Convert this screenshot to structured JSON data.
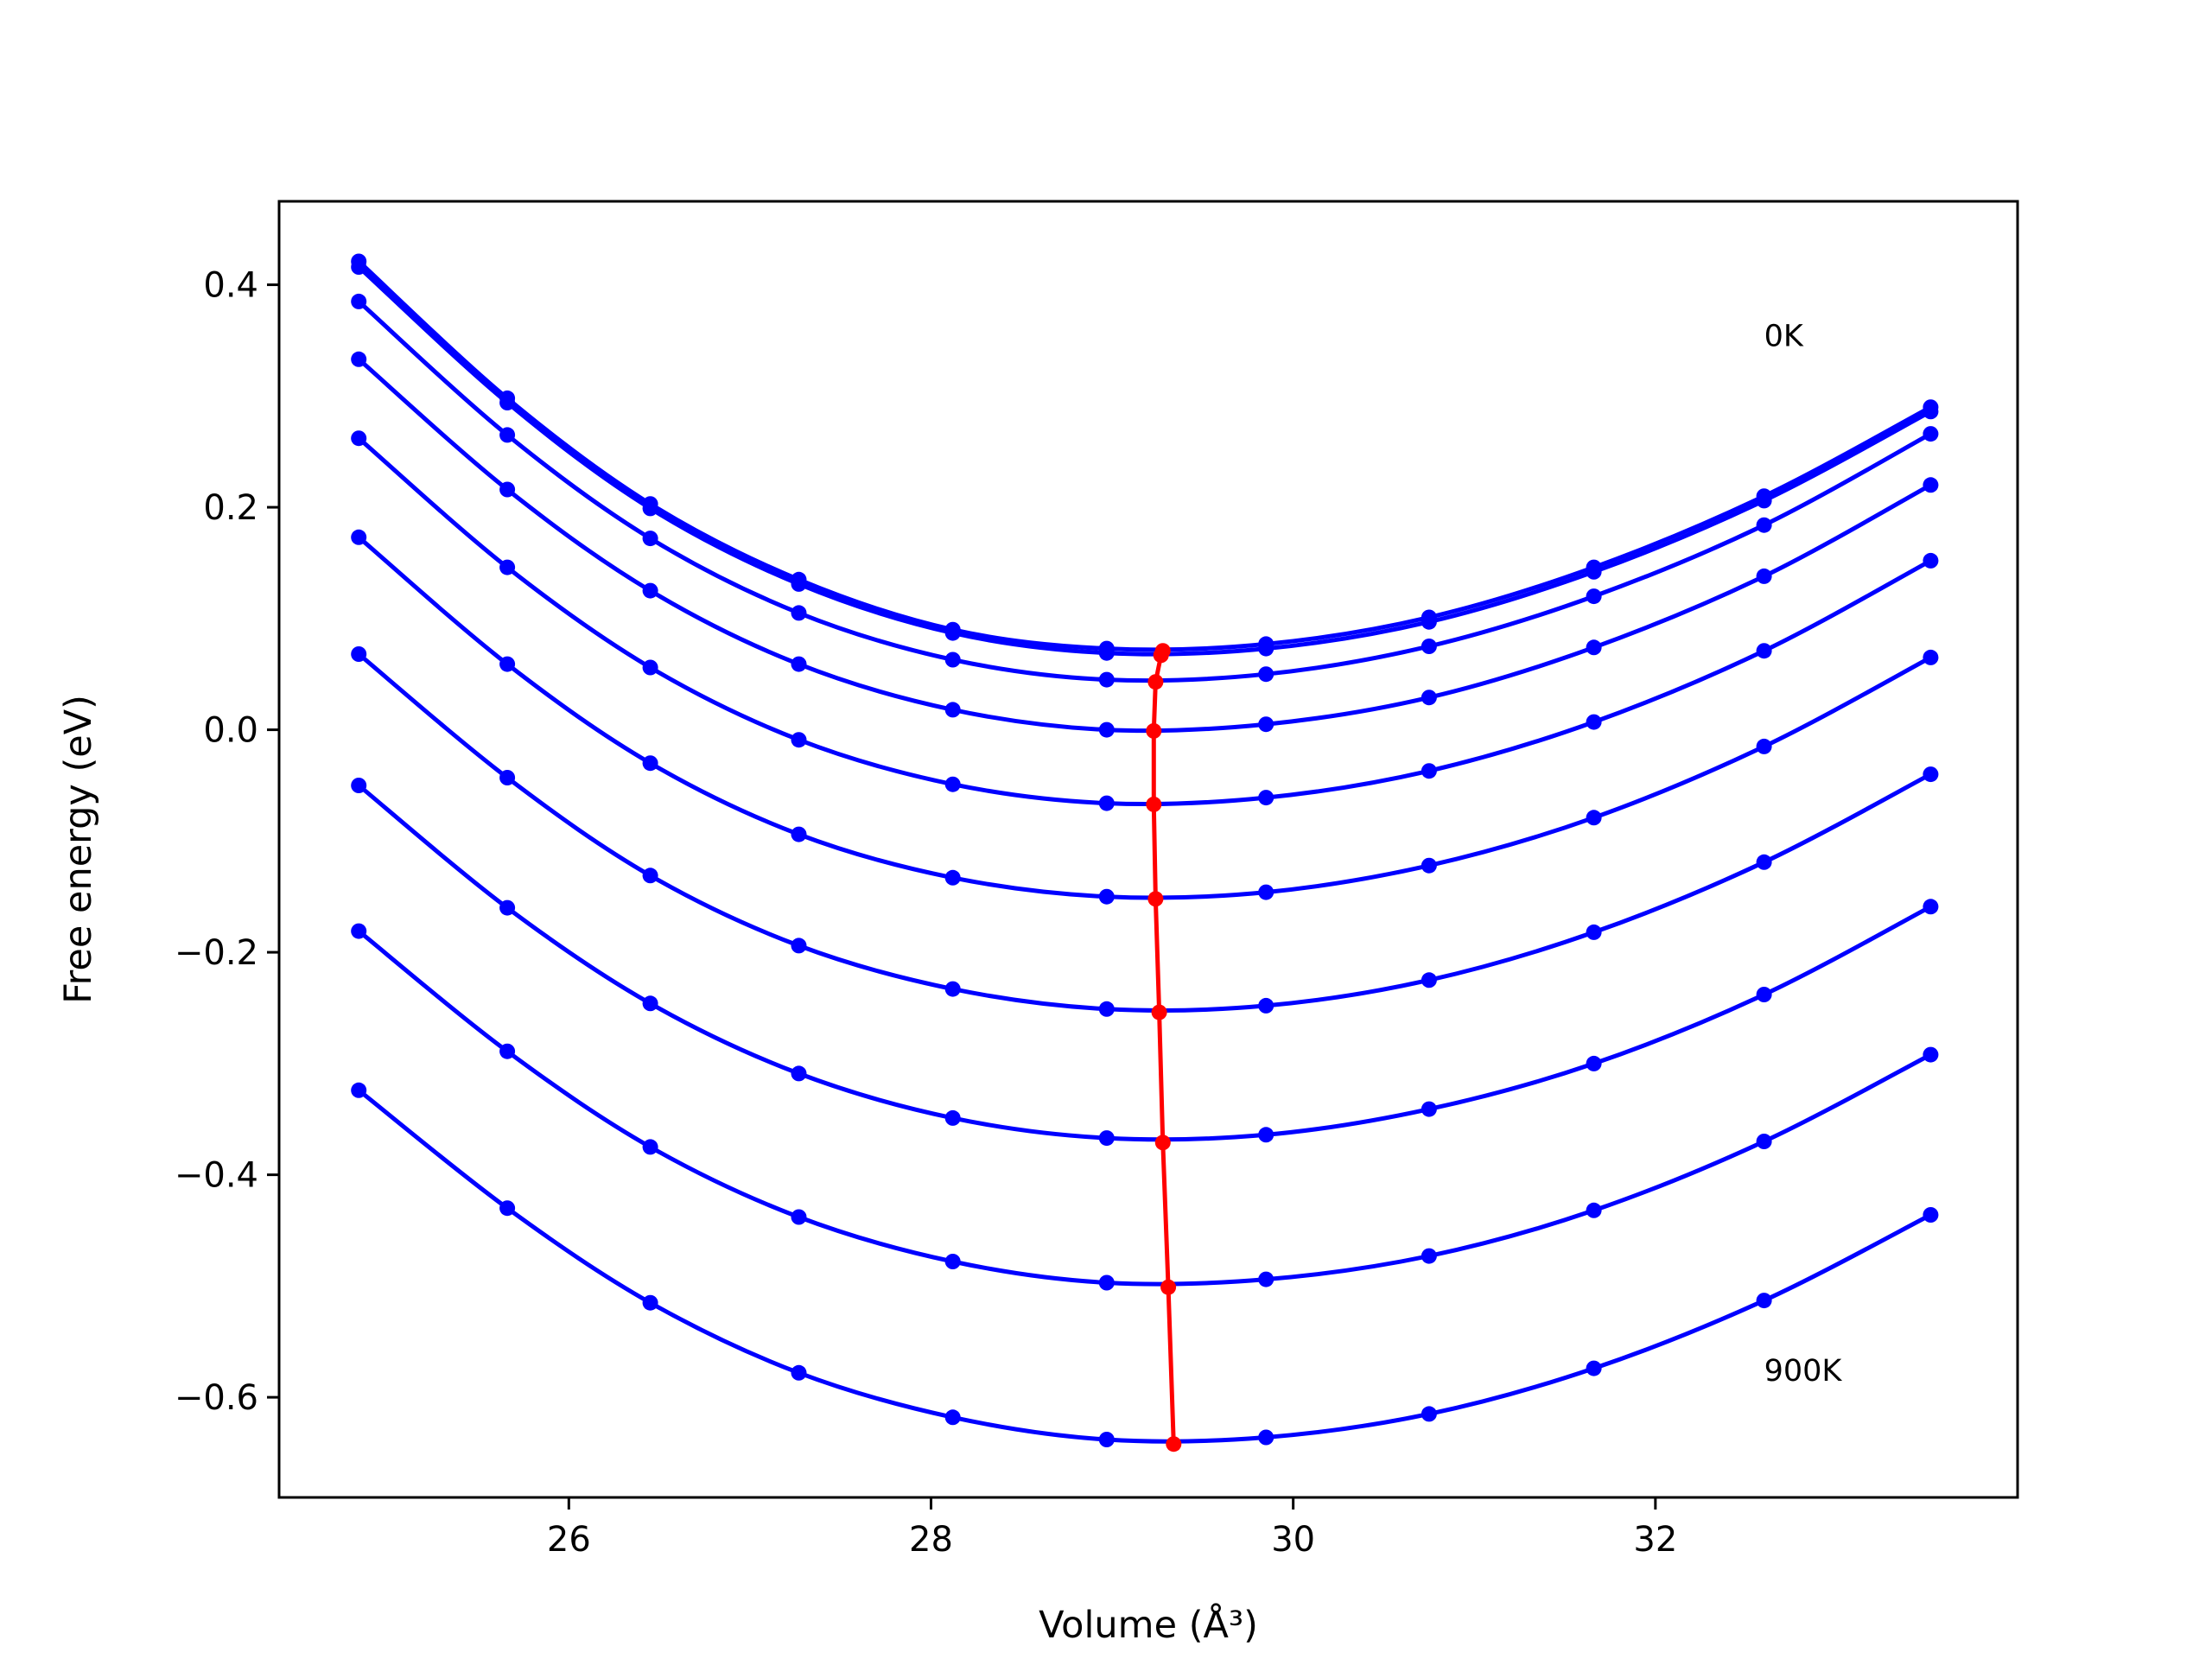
{
  "chart_data": {
    "type": "line",
    "xlabel": "Volume (Å³)",
    "ylabel": "Free energy (eV)",
    "xlim": [
      24.4,
      34.0
    ],
    "ylim": [
      -0.69,
      0.475
    ],
    "xticks": [
      26,
      28,
      30,
      32
    ],
    "xtick_labels": [
      "26",
      "28",
      "30",
      "32"
    ],
    "yticks": [
      0.4,
      0.2,
      0.0,
      -0.2,
      -0.4,
      -0.6
    ],
    "ytick_labels": [
      "0.4",
      "0.2",
      "0.0",
      "−0.2",
      "−0.4",
      "−0.6"
    ],
    "grid": false,
    "annotations": [
      {
        "text": "0K",
        "x": 32.6,
        "y": 0.345
      },
      {
        "text": "900K",
        "x": 32.6,
        "y": -0.585
      }
    ],
    "x": [
      24.84,
      25.66,
      26.45,
      27.27,
      28.12,
      28.97,
      29.85,
      30.75,
      31.66,
      32.6,
      33.52
    ],
    "series": [
      {
        "values": [
          0.421,
          0.298,
          0.203,
          0.135,
          0.09,
          0.073,
          0.077,
          0.101,
          0.146,
          0.21,
          0.29
        ]
      },
      {
        "values": [
          0.416,
          0.294,
          0.199,
          0.131,
          0.087,
          0.069,
          0.073,
          0.097,
          0.142,
          0.206,
          0.286
        ]
      },
      {
        "values": [
          0.385,
          0.265,
          0.172,
          0.105,
          0.063,
          0.045,
          0.05,
          0.075,
          0.12,
          0.184,
          0.266
        ]
      },
      {
        "values": [
          0.333,
          0.216,
          0.125,
          0.059,
          0.018,
          0.0,
          0.005,
          0.029,
          0.074,
          0.138,
          0.22
        ]
      },
      {
        "values": [
          0.262,
          0.146,
          0.056,
          -0.009,
          -0.049,
          -0.066,
          -0.061,
          -0.037,
          0.007,
          0.071,
          0.152
        ]
      },
      {
        "values": [
          0.173,
          0.059,
          -0.03,
          -0.094,
          -0.133,
          -0.15,
          -0.146,
          -0.122,
          -0.079,
          -0.015,
          0.065
        ]
      },
      {
        "values": [
          0.068,
          -0.043,
          -0.131,
          -0.194,
          -0.233,
          -0.251,
          -0.248,
          -0.225,
          -0.182,
          -0.119,
          -0.04
        ]
      },
      {
        "values": [
          -0.05,
          -0.16,
          -0.246,
          -0.309,
          -0.349,
          -0.367,
          -0.364,
          -0.341,
          -0.3,
          -0.238,
          -0.159
        ]
      },
      {
        "values": [
          -0.181,
          -0.289,
          -0.375,
          -0.438,
          -0.478,
          -0.497,
          -0.494,
          -0.473,
          -0.432,
          -0.37,
          -0.292
        ]
      },
      {
        "values": [
          -0.324,
          -0.43,
          -0.515,
          -0.578,
          -0.618,
          -0.638,
          -0.636,
          -0.615,
          -0.574,
          -0.513,
          -0.436
        ]
      }
    ],
    "minimum_path": {
      "x": [
        29.28,
        29.27,
        29.24,
        29.23,
        29.23,
        29.24,
        29.26,
        29.28,
        29.31,
        29.34
      ],
      "y": [
        0.071,
        0.067,
        0.043,
        -0.001,
        -0.067,
        -0.152,
        -0.254,
        -0.371,
        -0.501,
        -0.642
      ]
    },
    "colors": {
      "series": "#0000ff",
      "minimum_path": "#ff0000",
      "axes": "#000000"
    }
  }
}
